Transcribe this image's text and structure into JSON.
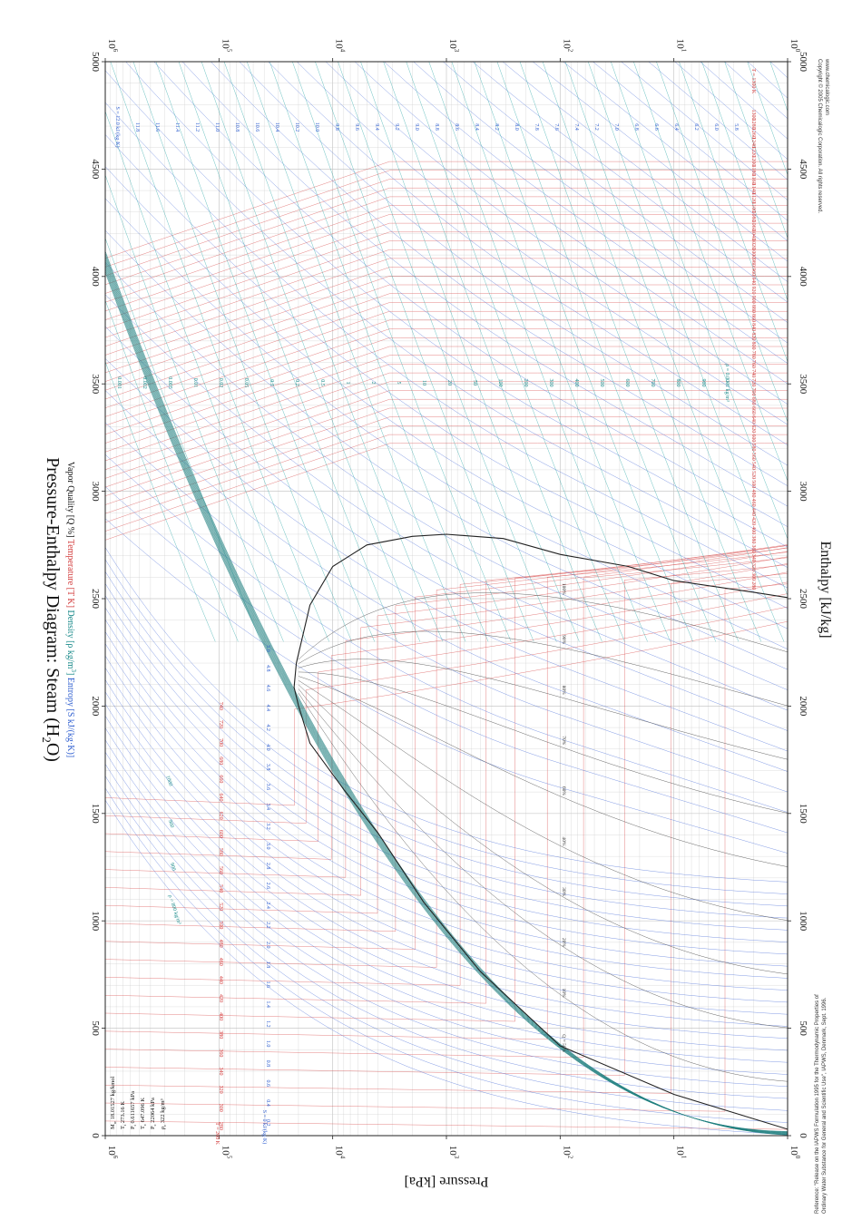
{
  "chart_data": {
    "type": "line",
    "title": "Pressure-Enthalpy Diagram: Steam (H",
    "title_sub": "2",
    "title_end": "O)",
    "subtitle": {
      "quality": "Vapor Quality [Q %]",
      "temperature": "Temperature [T K]",
      "density_pre": "Density [ρ kg/m",
      "density_sup": "3",
      "density_post": "]",
      "entropy": "Entropy [S kJ/(kg·K)]"
    },
    "xlabel": "Enthalpy [kJ/kg]",
    "ylabel": "Pressure [kPa]",
    "xlim": [
      0,
      5000
    ],
    "ylim_log10": [
      0,
      6
    ],
    "x_ticks": [
      "0",
      "500",
      "1000",
      "1500",
      "2000",
      "2500",
      "3000",
      "3500",
      "4000",
      "4500",
      "5000"
    ],
    "y_ticks": [
      {
        "base": "10",
        "exp": "0"
      },
      {
        "base": "10",
        "exp": "1"
      },
      {
        "base": "10",
        "exp": "2"
      },
      {
        "base": "10",
        "exp": "3"
      },
      {
        "base": "10",
        "exp": "4"
      },
      {
        "base": "10",
        "exp": "5"
      },
      {
        "base": "10",
        "exp": "6"
      }
    ],
    "saturation_dome": {
      "liquid": [
        [
          30,
          0
        ],
        [
          192,
          1
        ],
        [
          418,
          2
        ],
        [
          763,
          2.7
        ],
        [
          1087,
          3.2
        ],
        [
          1408,
          3.6
        ],
        [
          1610,
          3.9
        ],
        [
          1827,
          4.2
        ],
        [
          2000,
          4.3
        ],
        [
          2087,
          4.34
        ]
      ],
      "vapor": [
        [
          2087,
          4.34
        ],
        [
          2200,
          4.32
        ],
        [
          2470,
          4.2
        ],
        [
          2650,
          4.0
        ],
        [
          2750,
          3.7
        ],
        [
          2790,
          3.3
        ],
        [
          2800,
          3.0
        ],
        [
          2780,
          2.5
        ],
        [
          2706,
          2.0
        ],
        [
          2650,
          1.4
        ],
        [
          2584,
          1.0
        ],
        [
          2530,
          0.3
        ],
        [
          2505,
          0
        ]
      ]
    },
    "temperature_labels_K": [
      "280",
      "300",
      "320",
      "340",
      "360",
      "380",
      "400",
      "420",
      "440",
      "460",
      "480",
      "500",
      "520",
      "540",
      "560",
      "580",
      "600",
      "620",
      "640",
      "660",
      "680",
      "700",
      "720",
      "740",
      "760",
      "780",
      "800",
      "820",
      "840",
      "860",
      "880",
      "900",
      "920",
      "940",
      "960",
      "980",
      "1000",
      "1020",
      "1040",
      "1060",
      "1080",
      "1100",
      "1120",
      "1140",
      "1160",
      "1180",
      "1200",
      "1220",
      "1240",
      "1260",
      "1280",
      "1300"
    ],
    "temperature_labels_hot_K": [
      "280",
      "300",
      "320",
      "340",
      "360",
      "380",
      "400",
      "420",
      "440",
      "460",
      "480",
      "500",
      "520",
      "540",
      "560",
      "580",
      "600",
      "620",
      "640",
      "660",
      "680",
      "700",
      "720",
      "740",
      "760",
      "780",
      "800",
      "820",
      "840",
      "860",
      "880",
      "900",
      "920",
      "940",
      "960",
      "980",
      "1000",
      "1020",
      "1040",
      "1060",
      "1080",
      "1100",
      "1120",
      "1140",
      "1160",
      "1180",
      "1200",
      "1220",
      "1240",
      "1260",
      "1280",
      "1300"
    ],
    "t_left_header": "T = 260 K",
    "t_right_header": "T = 1300 K",
    "entropy_labels": [
      "0.2",
      "0.4",
      "0.6",
      "0.8",
      "1.0",
      "1.2",
      "1.4",
      "1.6",
      "1.8",
      "2.0",
      "2.2",
      "2.4",
      "2.6",
      "2.8",
      "3.0",
      "3.2",
      "3.4",
      "3.6",
      "3.8",
      "4.0",
      "4.2",
      "4.4",
      "4.6",
      "4.8",
      "5.0"
    ],
    "entropy_header": "S = 0 kJ/(kg·K)",
    "entropy_top_labels": [
      "S = 12.0 kJ/(kg·K)",
      "11.8",
      "11.6",
      "11.4",
      "11.2",
      "11.0",
      "10.8",
      "10.6",
      "10.4",
      "10.2",
      "10.0",
      "9.8",
      "9.6",
      "9.4",
      "9.2",
      "9.0",
      "8.8",
      "8.6",
      "8.4",
      "8.2",
      "8.0",
      "7.8",
      "7.6",
      "7.4",
      "7.2",
      "7.0",
      "6.8",
      "6.6",
      "6.4",
      "6.2",
      "6.0",
      "5.8",
      "5.6",
      "5.4",
      "5.2",
      "S = 5 kJ/(kg·K)"
    ],
    "density_labels": [
      "0.001",
      "0.002",
      "0.005",
      "0.01",
      "0.02",
      "0.05",
      "0.1",
      "0.2",
      "0.5",
      "1",
      "2",
      "5",
      "10",
      "20",
      "50",
      "100",
      "200",
      "300",
      "400",
      "500",
      "600",
      "700",
      "800",
      "900",
      "1000"
    ],
    "density_header": "ρ = 0.0001 kg/m³",
    "density_high_labels": [
      "1000",
      "960",
      "900",
      "ρ = 800 kg/m³"
    ],
    "quality_labels": [
      "Q = 50%",
      "10%",
      "20%",
      "30%",
      "40%",
      "60%",
      "70%",
      "80%",
      "90%",
      "100%"
    ],
    "properties": [
      {
        "sym": "M",
        "sub": "w",
        "val": "18.01527 kg/kmol"
      },
      {
        "sym": "T",
        "sub": "t",
        "val": "273.16 K"
      },
      {
        "sym": "P",
        "sub": "t",
        "val": "0.611657 kPa"
      },
      {
        "sym": "T",
        "sub": "c",
        "val": "647.096 K"
      },
      {
        "sym": "P",
        "sub": "c",
        "val": "22064 kPa"
      },
      {
        "sym": "ρ",
        "sub": "c",
        "val": "322 kg/m³"
      }
    ],
    "copyright": [
      "Copyright © 2005 Chemicalogic Corporation. All rights reserved.",
      "www.chemicalogic.com"
    ],
    "reference": [
      "Reference: \"Release on the IAPWS Formulation 1995 for the Thermodynamic Properties of",
      "Ordinary Water Substance for General and Scientific Use\", IAPWS, Denmark, Sept. 1996."
    ],
    "colors": {
      "temperature": "#d94a4a",
      "entropy": "#4a6fd9",
      "density": "#2aa6a6",
      "quality": "#555555",
      "dome": "#222222",
      "grid": "#c8c8c8",
      "liquid_isentrope": "#1f7f7f"
    }
  }
}
